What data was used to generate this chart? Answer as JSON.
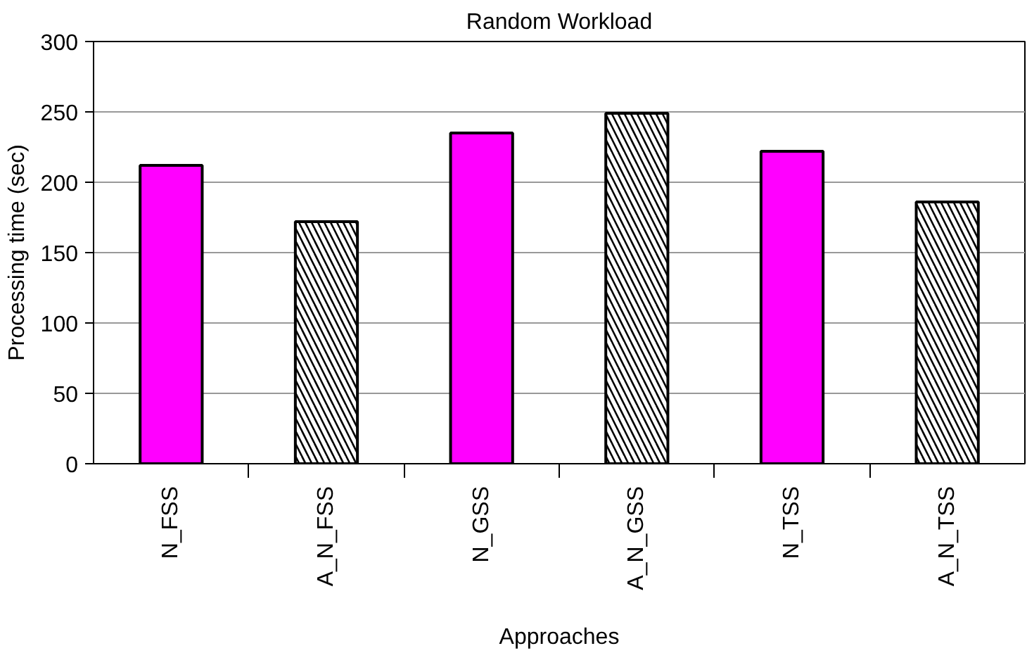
{
  "chart_data": {
    "type": "bar",
    "title": "Random Workload",
    "xlabel": "Approaches",
    "ylabel": "Processing time (sec)",
    "categories": [
      "N_FSS",
      "A_N_FSS",
      "N_GSS",
      "A_N_GSS",
      "N_TSS",
      "A_N_TSS"
    ],
    "values": [
      212,
      172,
      235,
      249,
      222,
      186
    ],
    "colors": [
      "#ff00ff",
      "#ffffff",
      "#ff00ff",
      "#ffffff",
      "#ff00ff",
      "#ffffff"
    ],
    "ylim": [
      0,
      300
    ],
    "yticks": [
      0,
      50,
      100,
      150,
      200,
      250,
      300
    ],
    "grid": "y"
  }
}
